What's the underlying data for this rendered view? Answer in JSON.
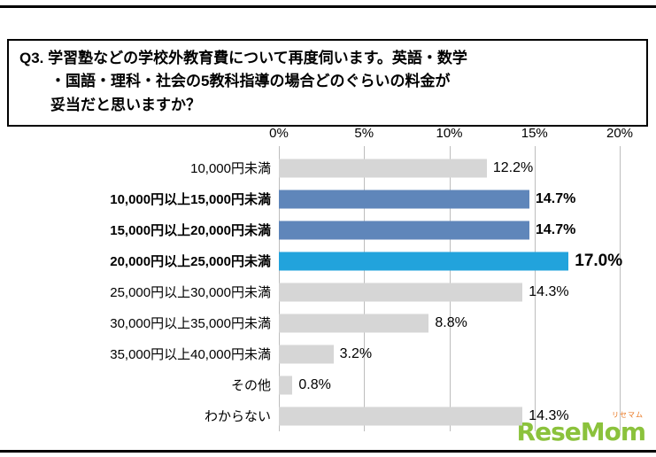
{
  "title": {
    "line1": "Q3. 学習塾などの学校外教育費について再度伺います。英語・数学",
    "line2": "・国語・理科・社会の5教科指導の場合どのぐらいの料金が",
    "line3": "妥当だと思いますか？"
  },
  "chart_data": {
    "type": "bar",
    "orientation": "horizontal",
    "title": "Q3. 学習塾などの学校外教育費について再度伺います。英語・数学・国語・理科・社会の5教科指導の場合どのぐらいの料金が妥当だと思いますか？",
    "x_axis": {
      "position": "top",
      "min": 0,
      "max": 20,
      "ticks": [
        "0%",
        "5%",
        "10%",
        "15%",
        "20%"
      ]
    },
    "grid": true,
    "legend": false,
    "categories": [
      "10,000円未満",
      "10,000円以上15,000円未満",
      "15,000円以上20,000円未満",
      "20,000円以上25,000円未満",
      "25,000円以上30,000円未満",
      "30,000円以上35,000円未満",
      "35,000円以上40,000円未満",
      "その他",
      "わからない"
    ],
    "values": [
      12.2,
      14.7,
      14.7,
      17.0,
      14.3,
      8.8,
      3.2,
      0.8,
      14.3
    ],
    "labels": [
      "12.2%",
      "14.7%",
      "14.7%",
      "17.0%",
      "14.3%",
      "8.8%",
      "3.2%",
      "0.8%",
      "14.3%"
    ],
    "emphasis": [
      "normal",
      "bold-blue",
      "bold-blue",
      "highlight",
      "normal",
      "normal",
      "normal",
      "normal",
      "normal"
    ],
    "colors": {
      "normal": "#d6d6d6",
      "bold-blue": "#5f86ba",
      "highlight": "#22a3dc"
    }
  },
  "logo": {
    "text": "ReseMom",
    "sub": "リセマム",
    "color": "#8bc23c"
  }
}
